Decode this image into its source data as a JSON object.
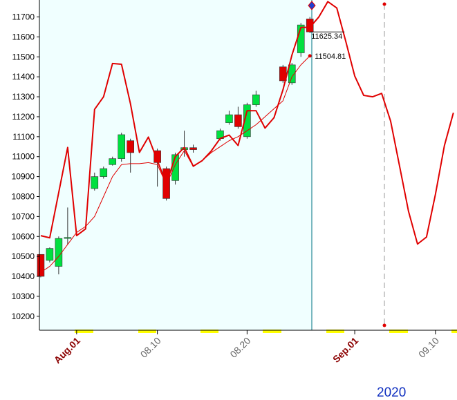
{
  "chart_data": {
    "type": "candlestick",
    "x": [
      -3,
      -2,
      -1,
      0,
      3,
      4,
      5,
      6,
      7,
      10,
      11,
      12,
      13,
      14,
      17,
      18,
      19,
      20,
      21,
      24,
      25,
      26,
      27
    ],
    "open": [
      10510,
      10480,
      10450,
      10590,
      10840,
      10900,
      10960,
      10990,
      11080,
      11030,
      10940,
      10880,
      11035,
      11045,
      11090,
      11170,
      11210,
      11100,
      11260,
      11450,
      11370,
      11520,
      11690
    ],
    "high": [
      10510,
      10545,
      10600,
      10745,
      10920,
      10950,
      11000,
      11120,
      11090,
      11040,
      10950,
      11020,
      11130,
      11060,
      11140,
      11230,
      11250,
      11270,
      11330,
      11460,
      11470,
      11670,
      11700
    ],
    "low": [
      10395,
      10470,
      10410,
      10560,
      10830,
      10890,
      10955,
      10975,
      10920,
      10850,
      10780,
      10860,
      11000,
      11020,
      11080,
      11160,
      11140,
      11090,
      11250,
      11370,
      11360,
      11500,
      11620
    ],
    "close": [
      10400,
      10540,
      10590,
      10595,
      10900,
      10940,
      10990,
      11110,
      11020,
      10970,
      10790,
      11010,
      11045,
      11035,
      11130,
      11210,
      11150,
      11260,
      11310,
      11380,
      11460,
      11660,
      11625
    ],
    "up_color": "#00e040",
    "down_color": "#e00000",
    "series": [
      {
        "color": "#e00000",
        "width": 2,
        "x": [
          -3,
          -2,
          0,
          1,
          2,
          3,
          4,
          5,
          6,
          7,
          8,
          9,
          10,
          11,
          12,
          13,
          14,
          15,
          16,
          17,
          18,
          19,
          20,
          21,
          22,
          23,
          24,
          25,
          26,
          27,
          28,
          29,
          30,
          31,
          32,
          33,
          34,
          35,
          36,
          37,
          38,
          39,
          40,
          41,
          42,
          43
        ],
        "values": [
          10604,
          10593,
          11046,
          10604,
          10638,
          11237,
          11300,
          11467,
          11463,
          11265,
          11021,
          11098,
          10980,
          10865,
          11000,
          11046,
          10952,
          10980,
          11028,
          11091,
          11108,
          11056,
          11230,
          11230,
          11143,
          11195,
          11335,
          11509,
          11648,
          11648,
          11700,
          11777,
          11745,
          11578,
          11404,
          11307,
          11300,
          11317,
          11178,
          10952,
          10725,
          10562,
          10597,
          10812,
          11056,
          11220
        ]
      },
      {
        "color": "#e00000",
        "width": 1,
        "x": [
          -3,
          -2,
          -1,
          0,
          1,
          2,
          3,
          4,
          5,
          6,
          7,
          8,
          9,
          10,
          11,
          12,
          13,
          14,
          15,
          16,
          17,
          18,
          19,
          20,
          21,
          22,
          23,
          24,
          25,
          26,
          27
        ],
        "values": [
          10420,
          10450,
          10500,
          10560,
          10620,
          10650,
          10700,
          10800,
          10900,
          10960,
          10965,
          10965,
          10970,
          10960,
          10860,
          10960,
          11030,
          10950,
          10980,
          11020,
          11050,
          11080,
          11100,
          11130,
          11160,
          11200,
          11240,
          11280,
          11400,
          11460,
          11505
        ]
      }
    ],
    "annotations": [
      "11625.34",
      "11504.81"
    ],
    "xlim": [
      -3.15,
      43.4
    ],
    "ylim": [
      10130,
      11785
    ],
    "yticks": [
      10200,
      10300,
      10400,
      10500,
      10600,
      10700,
      10800,
      10900,
      11000,
      11100,
      11200,
      11300,
      11400,
      11500,
      11600,
      11700
    ],
    "xticks": [
      {
        "value": 1,
        "label": "Aug.01"
      },
      {
        "value": 10,
        "label": "08.10"
      },
      {
        "value": 20,
        "label": "08.20"
      },
      {
        "value": 32,
        "label": "Sep.01"
      },
      {
        "value": 41,
        "label": "09.10"
      }
    ],
    "xtick_colors": [
      "#8b0000",
      "#666666",
      "#666666",
      "#8b0000",
      "#666666"
    ],
    "year": "2020"
  }
}
